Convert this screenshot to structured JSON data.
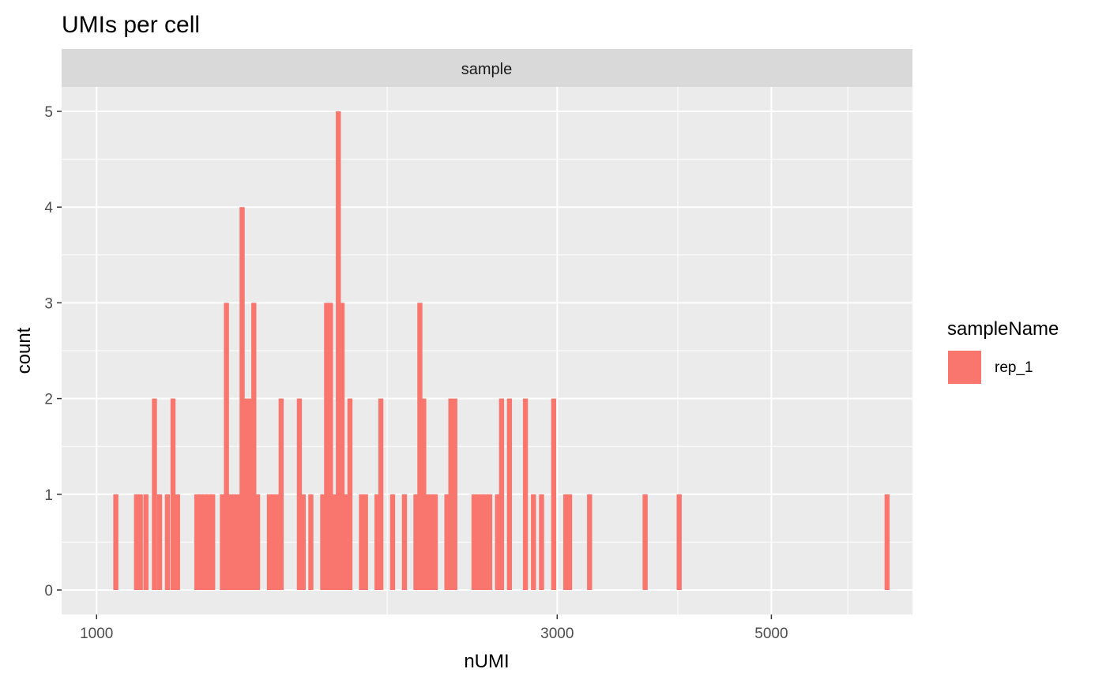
{
  "chart_data": {
    "type": "bar",
    "title": "UMIs per cell",
    "facet_label": "sample",
    "xlabel": "nUMI",
    "ylabel": "count",
    "x_scale": "log10",
    "xlim": [
      920,
      7000
    ],
    "ylim": [
      0,
      5
    ],
    "x_ticks": [
      1000,
      3000,
      5000
    ],
    "x_minor_ticks": [
      2000,
      4000,
      6000
    ],
    "y_ticks": [
      0,
      1,
      2,
      3,
      4,
      5
    ],
    "grid": true,
    "legend": {
      "title": "sampleName",
      "position": "right",
      "entries": [
        {
          "label": "rep_1",
          "color": "#F8766D"
        }
      ]
    },
    "colors": {
      "bar": "#F8766D",
      "panel": "#EBEBEB",
      "strip": "#D9D9D9",
      "grid": "#FFFFFF"
    },
    "bins": [
      {
        "x": 1047,
        "count": 1
      },
      {
        "x": 1100,
        "count": 1
      },
      {
        "x": 1110,
        "count": 1
      },
      {
        "x": 1125,
        "count": 1
      },
      {
        "x": 1148,
        "count": 2
      },
      {
        "x": 1162,
        "count": 1
      },
      {
        "x": 1184,
        "count": 1
      },
      {
        "x": 1200,
        "count": 2
      },
      {
        "x": 1213,
        "count": 1
      },
      {
        "x": 1270,
        "count": 1
      },
      {
        "x": 1282,
        "count": 1
      },
      {
        "x": 1294,
        "count": 1
      },
      {
        "x": 1307,
        "count": 1
      },
      {
        "x": 1319,
        "count": 1
      },
      {
        "x": 1350,
        "count": 1
      },
      {
        "x": 1363,
        "count": 3
      },
      {
        "x": 1376,
        "count": 1
      },
      {
        "x": 1389,
        "count": 1
      },
      {
        "x": 1402,
        "count": 1
      },
      {
        "x": 1415,
        "count": 4
      },
      {
        "x": 1428,
        "count": 2
      },
      {
        "x": 1441,
        "count": 2
      },
      {
        "x": 1455,
        "count": 3
      },
      {
        "x": 1468,
        "count": 1
      },
      {
        "x": 1510,
        "count": 1
      },
      {
        "x": 1524,
        "count": 1
      },
      {
        "x": 1539,
        "count": 1
      },
      {
        "x": 1553,
        "count": 2
      },
      {
        "x": 1622,
        "count": 2
      },
      {
        "x": 1637,
        "count": 1
      },
      {
        "x": 1667,
        "count": 1
      },
      {
        "x": 1715,
        "count": 1
      },
      {
        "x": 1731,
        "count": 3
      },
      {
        "x": 1747,
        "count": 3
      },
      {
        "x": 1763,
        "count": 1
      },
      {
        "x": 1780,
        "count": 5
      },
      {
        "x": 1796,
        "count": 3
      },
      {
        "x": 1813,
        "count": 1
      },
      {
        "x": 1830,
        "count": 2
      },
      {
        "x": 1881,
        "count": 1
      },
      {
        "x": 1899,
        "count": 1
      },
      {
        "x": 1952,
        "count": 1
      },
      {
        "x": 1970,
        "count": 2
      },
      {
        "x": 2026,
        "count": 1
      },
      {
        "x": 2084,
        "count": 1
      },
      {
        "x": 2142,
        "count": 1
      },
      {
        "x": 2162,
        "count": 3
      },
      {
        "x": 2182,
        "count": 2
      },
      {
        "x": 2202,
        "count": 1
      },
      {
        "x": 2222,
        "count": 1
      },
      {
        "x": 2243,
        "count": 1
      },
      {
        "x": 2306,
        "count": 1
      },
      {
        "x": 2328,
        "count": 2
      },
      {
        "x": 2350,
        "count": 2
      },
      {
        "x": 2460,
        "count": 1
      },
      {
        "x": 2483,
        "count": 1
      },
      {
        "x": 2506,
        "count": 1
      },
      {
        "x": 2530,
        "count": 1
      },
      {
        "x": 2554,
        "count": 1
      },
      {
        "x": 2602,
        "count": 1
      },
      {
        "x": 2627,
        "count": 2
      },
      {
        "x": 2677,
        "count": 2
      },
      {
        "x": 2781,
        "count": 2
      },
      {
        "x": 2835,
        "count": 1
      },
      {
        "x": 2890,
        "count": 1
      },
      {
        "x": 2975,
        "count": 2
      },
      {
        "x": 3062,
        "count": 1
      },
      {
        "x": 3090,
        "count": 1
      },
      {
        "x": 3241,
        "count": 1
      },
      {
        "x": 3700,
        "count": 1
      },
      {
        "x": 4013,
        "count": 1
      },
      {
        "x": 6589,
        "count": 1
      }
    ]
  }
}
